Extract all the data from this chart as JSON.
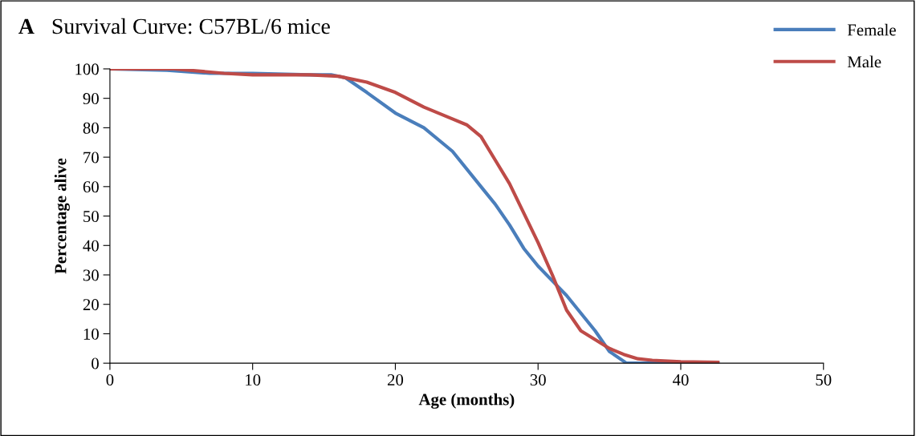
{
  "chart_data": {
    "type": "line",
    "title": "Survival Curve: C57BL/6 mice",
    "annotations": [
      "A"
    ],
    "xlabel": "Age (months)",
    "ylabel": "Percentage alive",
    "xlim": [
      0,
      50
    ],
    "xticks": [
      0,
      10,
      20,
      30,
      40,
      50
    ],
    "ylim": [
      0,
      100
    ],
    "yticks": [
      0,
      10,
      20,
      30,
      40,
      50,
      60,
      70,
      80,
      90,
      100
    ],
    "grid": false,
    "legend": "top right",
    "marker": "none",
    "line_style": "solid",
    "series": [
      {
        "name": "Female",
        "color": "#4a7ebb",
        "x": [
          0,
          4,
          7,
          10,
          14,
          15.5,
          16.5,
          18,
          20,
          22,
          24,
          26,
          27,
          28,
          29,
          30,
          31,
          32,
          33,
          34,
          35,
          36.2,
          38,
          40,
          42.6
        ],
        "values": [
          100,
          99.5,
          98.5,
          98.5,
          98,
          98,
          97,
          92,
          85,
          80,
          72,
          60,
          54,
          47,
          39,
          33,
          28,
          23,
          17,
          11,
          4,
          0,
          0,
          0,
          0
        ]
      },
      {
        "name": "Male",
        "color": "#be4b48",
        "x": [
          0,
          4.5,
          8,
          10,
          14,
          16,
          18,
          20,
          22,
          24,
          25,
          26,
          27,
          28,
          29,
          30,
          31,
          32,
          33,
          34,
          35,
          36,
          37,
          38,
          40,
          42.6
        ],
        "values": [
          100,
          100,
          98.5,
          98,
          98,
          97.5,
          95.5,
          92,
          87,
          83,
          81,
          77,
          69,
          61,
          51,
          41,
          30,
          18,
          11,
          8,
          5,
          3,
          1.5,
          1,
          0.5,
          0.3
        ]
      }
    ]
  }
}
